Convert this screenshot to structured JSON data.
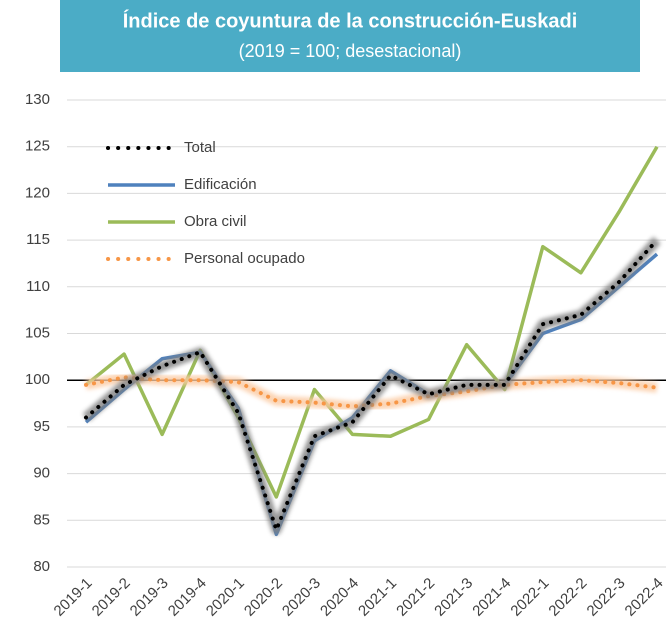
{
  "chart_data": {
    "type": "line",
    "title": "Índice de coyuntura de la construcción-Euskadi",
    "subtitle": "(2019 = 100; desestacional)",
    "categories": [
      "2019-1",
      "2019-2",
      "2019-3",
      "2019-4",
      "2020-1",
      "2020-2",
      "2020-3",
      "2020-4",
      "2021-1",
      "2021-2",
      "2021-3",
      "2021-4",
      "2022-1",
      "2022-2",
      "2022-3",
      "2022-4"
    ],
    "series": [
      {
        "name": "Total",
        "color": "#000000",
        "dotted": true,
        "glow": "#7f7f7f",
        "values": [
          96,
          99.5,
          101.5,
          103,
          96.5,
          84,
          94,
          95.5,
          100.5,
          98.5,
          99.5,
          99.5,
          106,
          107,
          110.5,
          115
        ]
      },
      {
        "name": "Edificación",
        "color": "#4f81bd",
        "dotted": false,
        "values": [
          95.5,
          99,
          102.3,
          103,
          97,
          83.5,
          93.5,
          96,
          101,
          98.5,
          99,
          99.5,
          105,
          106.5,
          110,
          113.5
        ]
      },
      {
        "name": "Obra civil",
        "color": "#9bbb59",
        "dotted": false,
        "values": [
          99.5,
          102.8,
          94.2,
          103.2,
          96,
          87.5,
          99,
          94.2,
          94,
          95.8,
          103.8,
          99,
          114.3,
          111.5,
          118,
          125
        ]
      },
      {
        "name": "Personal ocupado",
        "color": "#f79646",
        "dotted": true,
        "glow": "#fbc9a0",
        "values": [
          99.5,
          100.3,
          100,
          100,
          99.8,
          97.8,
          97.6,
          97.2,
          97.5,
          98.3,
          98.8,
          99.5,
          99.8,
          100,
          99.7,
          99.2
        ]
      }
    ],
    "reference_line": 100,
    "ylim": [
      80,
      130
    ],
    "yticks": [
      80,
      85,
      90,
      95,
      100,
      105,
      110,
      115,
      120,
      125,
      130
    ],
    "grid": true,
    "legend": "top-left"
  }
}
